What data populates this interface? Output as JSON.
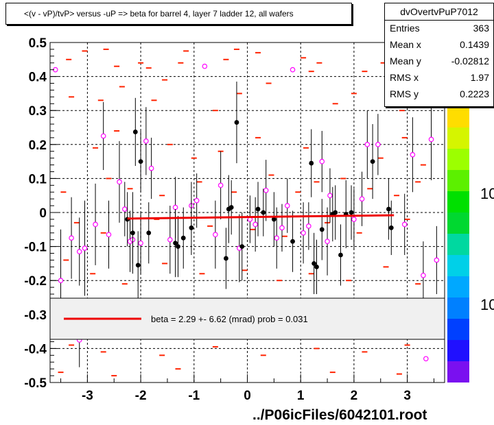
{
  "title": "<(v - vP)/tvP> versus  -uP => beta for barrel 4, layer 7 ladder 12, all wafers",
  "stats": {
    "name": "dvOvertvPuP7012",
    "rows": [
      {
        "label": "Entries",
        "value": "363"
      },
      {
        "label": "Mean x",
        "value": "0.1439"
      },
      {
        "label": "Mean y",
        "value": "-0.02812"
      },
      {
        "label": "RMS x",
        "value": "1.97"
      },
      {
        "label": "RMS y",
        "value": "0.2223"
      }
    ]
  },
  "legend": {
    "fit_label": "beta =    2.29 +-  6.62 (mrad) prob = 0.031"
  },
  "footer": "../P06icFiles/6042101.root",
  "colors": {
    "fit_line": "#ee0000",
    "hist_marks": "#ff2200",
    "open_points": "#ff00ff",
    "filled_points": "#000000",
    "grid": "#000000",
    "frame": "#000000",
    "legend_bg": "#f0f0f0"
  },
  "chart_data": {
    "type": "scatter",
    "xlim": [
      -3.7,
      3.7
    ],
    "ylim": [
      -0.5,
      0.5
    ],
    "x_ticks": [
      "-3",
      "-2",
      "-1",
      "0",
      "1",
      "2",
      "3"
    ],
    "y_ticks": [
      "-0.5",
      "-0.4",
      "-0.3",
      "-0.2",
      "-0.1",
      "0",
      "0.1",
      "0.2",
      "0.3",
      "0.4",
      "0.5"
    ],
    "grid": true,
    "palette_labels": [
      "10",
      "10"
    ],
    "fit": {
      "x_range": [
        -2.25,
        2.75
      ],
      "y": [
        -0.018,
        -0.008
      ]
    },
    "filled_points": [
      {
        "x": -2.25,
        "y": -0.02,
        "err": 0.08
      },
      {
        "x": -2.1,
        "y": 0.237,
        "err": 0.1
      },
      {
        "x": -2.0,
        "y": 0.15,
        "err": 0.09
      },
      {
        "x": -2.15,
        "y": -0.06,
        "err": 0.12
      },
      {
        "x": -2.05,
        "y": -0.155,
        "err": 0.1
      },
      {
        "x": -1.85,
        "y": -0.06,
        "err": 0.09
      },
      {
        "x": -1.35,
        "y": -0.09,
        "err": 0.1
      },
      {
        "x": -1.3,
        "y": -0.1,
        "err": 0.09
      },
      {
        "x": -1.2,
        "y": -0.075,
        "err": 0.09
      },
      {
        "x": -1.05,
        "y": -0.045,
        "err": 0.08
      },
      {
        "x": -0.35,
        "y": 0.01,
        "err": 0.1
      },
      {
        "x": -0.3,
        "y": 0.015,
        "err": 0.08
      },
      {
        "x": -0.2,
        "y": 0.265,
        "err": 0.12
      },
      {
        "x": -0.1,
        "y": -0.1,
        "err": 0.1
      },
      {
        "x": -0.4,
        "y": -0.135,
        "err": 0.09
      },
      {
        "x": 0.2,
        "y": 0.01,
        "err": 0.08
      },
      {
        "x": 0.3,
        "y": 0.0,
        "err": 0.07
      },
      {
        "x": 0.5,
        "y": -0.02,
        "err": 0.08
      },
      {
        "x": 0.85,
        "y": -0.085,
        "err": 0.09
      },
      {
        "x": 1.2,
        "y": 0.145,
        "err": 0.1
      },
      {
        "x": 1.25,
        "y": -0.15,
        "err": 0.09
      },
      {
        "x": 1.3,
        "y": -0.16,
        "err": 0.08
      },
      {
        "x": 1.4,
        "y": -0.05,
        "err": 0.09
      },
      {
        "x": 1.6,
        "y": -0.005,
        "err": 0.08
      },
      {
        "x": 1.65,
        "y": 0.0,
        "err": 0.08
      },
      {
        "x": 1.75,
        "y": -0.125,
        "err": 0.09
      },
      {
        "x": 1.85,
        "y": -0.005,
        "err": 0.1
      },
      {
        "x": 1.95,
        "y": 0.0,
        "err": 0.08
      },
      {
        "x": 2.35,
        "y": 0.15,
        "err": 0.11
      },
      {
        "x": 2.65,
        "y": 0.01,
        "err": 0.09
      },
      {
        "x": 2.7,
        "y": -0.045,
        "err": 0.08
      }
    ],
    "open_points": [
      {
        "x": -3.6,
        "y": 0.42,
        "err": 0.0
      },
      {
        "x": -3.5,
        "y": -0.2,
        "err": 0.15
      },
      {
        "x": -3.3,
        "y": -0.075,
        "err": 0.12
      },
      {
        "x": -3.15,
        "y": -0.115,
        "err": 0.1
      },
      {
        "x": -3.05,
        "y": -0.105,
        "err": 0.14
      },
      {
        "x": -2.85,
        "y": -0.035,
        "err": 0.12
      },
      {
        "x": -2.7,
        "y": 0.225,
        "err": 0.1
      },
      {
        "x": -2.6,
        "y": -0.065,
        "err": 0.1
      },
      {
        "x": -2.4,
        "y": 0.09,
        "err": 0.12
      },
      {
        "x": -2.3,
        "y": 0.01,
        "err": 0.08
      },
      {
        "x": -2.2,
        "y": -0.085,
        "err": 0.09
      },
      {
        "x": -2.15,
        "y": -0.08,
        "err": 0.07
      },
      {
        "x": -2.0,
        "y": -0.09,
        "err": 0.09
      },
      {
        "x": -1.9,
        "y": 0.21,
        "err": 0.1
      },
      {
        "x": -1.8,
        "y": 0.13,
        "err": 0.09
      },
      {
        "x": -1.45,
        "y": -0.08,
        "err": 0.1
      },
      {
        "x": -1.35,
        "y": 0.015,
        "err": 0.09
      },
      {
        "x": -1.05,
        "y": 0.02,
        "err": 0.07
      },
      {
        "x": -0.95,
        "y": 0.035,
        "err": 0.08
      },
      {
        "x": -0.8,
        "y": 0.43,
        "err": 0.0
      },
      {
        "x": -0.6,
        "y": -0.065,
        "err": 0.1
      },
      {
        "x": -0.5,
        "y": 0.08,
        "err": 0.1
      },
      {
        "x": -0.15,
        "y": -0.105,
        "err": 0.1
      },
      {
        "x": 0.05,
        "y": -0.02,
        "err": 0.07
      },
      {
        "x": 0.15,
        "y": -0.035,
        "err": 0.08
      },
      {
        "x": 0.35,
        "y": 0.065,
        "err": 0.09
      },
      {
        "x": 0.55,
        "y": -0.075,
        "err": 0.09
      },
      {
        "x": 0.65,
        "y": -0.045,
        "err": 0.07
      },
      {
        "x": 0.75,
        "y": 0.02,
        "err": 0.08
      },
      {
        "x": 0.85,
        "y": 0.42,
        "err": 0.0
      },
      {
        "x": 1.05,
        "y": -0.06,
        "err": 0.09
      },
      {
        "x": 1.15,
        "y": -0.04,
        "err": 0.07
      },
      {
        "x": 1.4,
        "y": 0.15,
        "err": 0.09
      },
      {
        "x": 1.5,
        "y": -0.085,
        "err": 0.1
      },
      {
        "x": 1.55,
        "y": 0.05,
        "err": 0.08
      },
      {
        "x": 2.0,
        "y": -0.02,
        "err": 0.09
      },
      {
        "x": 2.15,
        "y": 0.04,
        "err": 0.08
      },
      {
        "x": 2.25,
        "y": 0.2,
        "err": 0.1
      },
      {
        "x": 2.45,
        "y": 0.2,
        "err": 0.09
      },
      {
        "x": 2.95,
        "y": -0.035,
        "err": 0.09
      },
      {
        "x": 3.1,
        "y": 0.17,
        "err": 0.11
      },
      {
        "x": 3.3,
        "y": -0.185,
        "err": 0.1
      },
      {
        "x": 3.45,
        "y": 0.215,
        "err": 0.12
      },
      {
        "x": 3.55,
        "y": -0.14,
        "err": 0.1
      },
      {
        "x": -3.15,
        "y": -0.375,
        "err": 0.08
      },
      {
        "x": 3.35,
        "y": -0.43,
        "err": 0.0
      }
    ],
    "hist_marks": [
      {
        "x": -3.35,
        "y": 0.45
      },
      {
        "x": -3.05,
        "y": 0.475
      },
      {
        "x": -2.65,
        "y": 0.48
      },
      {
        "x": -2.45,
        "y": 0.43
      },
      {
        "x": -2.0,
        "y": 0.44
      },
      {
        "x": -1.85,
        "y": 0.425
      },
      {
        "x": -1.55,
        "y": 0.39
      },
      {
        "x": -1.25,
        "y": 0.44
      },
      {
        "x": -1.15,
        "y": 0.475
      },
      {
        "x": -0.4,
        "y": 0.45
      },
      {
        "x": -0.2,
        "y": 0.48
      },
      {
        "x": 0.2,
        "y": 0.47
      },
      {
        "x": 1.05,
        "y": 0.455
      },
      {
        "x": 1.2,
        "y": 0.415
      },
      {
        "x": 1.35,
        "y": 0.44
      },
      {
        "x": 2.2,
        "y": 0.415
      },
      {
        "x": 2.55,
        "y": 0.44
      },
      {
        "x": 2.85,
        "y": 0.46
      },
      {
        "x": 3.2,
        "y": 0.42
      },
      {
        "x": -3.3,
        "y": 0.34
      },
      {
        "x": -2.75,
        "y": 0.33
      },
      {
        "x": -2.35,
        "y": 0.37
      },
      {
        "x": -1.75,
        "y": 0.33
      },
      {
        "x": -0.6,
        "y": 0.3
      },
      {
        "x": -0.15,
        "y": 0.35
      },
      {
        "x": 0.4,
        "y": 0.38
      },
      {
        "x": 1.65,
        "y": 0.32
      },
      {
        "x": 2.0,
        "y": 0.35
      },
      {
        "x": 2.9,
        "y": 0.3
      },
      {
        "x": -2.85,
        "y": 0.19
      },
      {
        "x": -2.45,
        "y": 0.24
      },
      {
        "x": -1.45,
        "y": 0.2
      },
      {
        "x": -1.0,
        "y": 0.16
      },
      {
        "x": -0.5,
        "y": 0.18
      },
      {
        "x": 0.2,
        "y": 0.22
      },
      {
        "x": 1.1,
        "y": 0.19
      },
      {
        "x": 2.5,
        "y": 0.16
      },
      {
        "x": 2.95,
        "y": 0.22
      },
      {
        "x": 3.3,
        "y": 0.14
      },
      {
        "x": -3.45,
        "y": 0.06
      },
      {
        "x": -2.6,
        "y": 0.1
      },
      {
        "x": -2.2,
        "y": 0.07
      },
      {
        "x": -1.6,
        "y": 0.05
      },
      {
        "x": -0.9,
        "y": 0.09
      },
      {
        "x": -0.25,
        "y": 0.06
      },
      {
        "x": 0.45,
        "y": 0.11
      },
      {
        "x": 0.95,
        "y": 0.06
      },
      {
        "x": 1.3,
        "y": 0.09
      },
      {
        "x": 1.8,
        "y": 0.1
      },
      {
        "x": 2.3,
        "y": 0.07
      },
      {
        "x": 2.8,
        "y": 0.05
      },
      {
        "x": 3.2,
        "y": 0.09
      },
      {
        "x": -3.2,
        "y": -0.03
      },
      {
        "x": -2.7,
        "y": -0.06
      },
      {
        "x": -1.7,
        "y": -0.02
      },
      {
        "x": -0.7,
        "y": -0.04
      },
      {
        "x": 0.1,
        "y": -0.05
      },
      {
        "x": 0.7,
        "y": -0.07
      },
      {
        "x": 1.5,
        "y": -0.03
      },
      {
        "x": 2.1,
        "y": -0.06
      },
      {
        "x": 3.0,
        "y": -0.02
      },
      {
        "x": -3.4,
        "y": -0.14
      },
      {
        "x": -2.9,
        "y": -0.18
      },
      {
        "x": -2.3,
        "y": -0.21
      },
      {
        "x": -1.55,
        "y": -0.15
      },
      {
        "x": -0.85,
        "y": -0.18
      },
      {
        "x": -0.05,
        "y": -0.17
      },
      {
        "x": 0.6,
        "y": -0.2
      },
      {
        "x": 1.2,
        "y": -0.18
      },
      {
        "x": 1.9,
        "y": -0.2
      },
      {
        "x": 2.6,
        "y": -0.16
      },
      {
        "x": 3.2,
        "y": -0.21
      },
      {
        "x": -3.3,
        "y": -0.39
      },
      {
        "x": -2.7,
        "y": -0.41
      },
      {
        "x": -1.6,
        "y": -0.42
      },
      {
        "x": -0.6,
        "y": -0.395
      },
      {
        "x": 0.3,
        "y": -0.42
      },
      {
        "x": 1.3,
        "y": -0.4
      },
      {
        "x": 2.2,
        "y": -0.41
      },
      {
        "x": 3.0,
        "y": -0.39
      },
      {
        "x": -3.5,
        "y": -0.47
      },
      {
        "x": -2.5,
        "y": -0.48
      },
      {
        "x": -1.3,
        "y": -0.46
      },
      {
        "x": 1.6,
        "y": -0.47
      },
      {
        "x": 2.85,
        "y": -0.475
      }
    ]
  }
}
